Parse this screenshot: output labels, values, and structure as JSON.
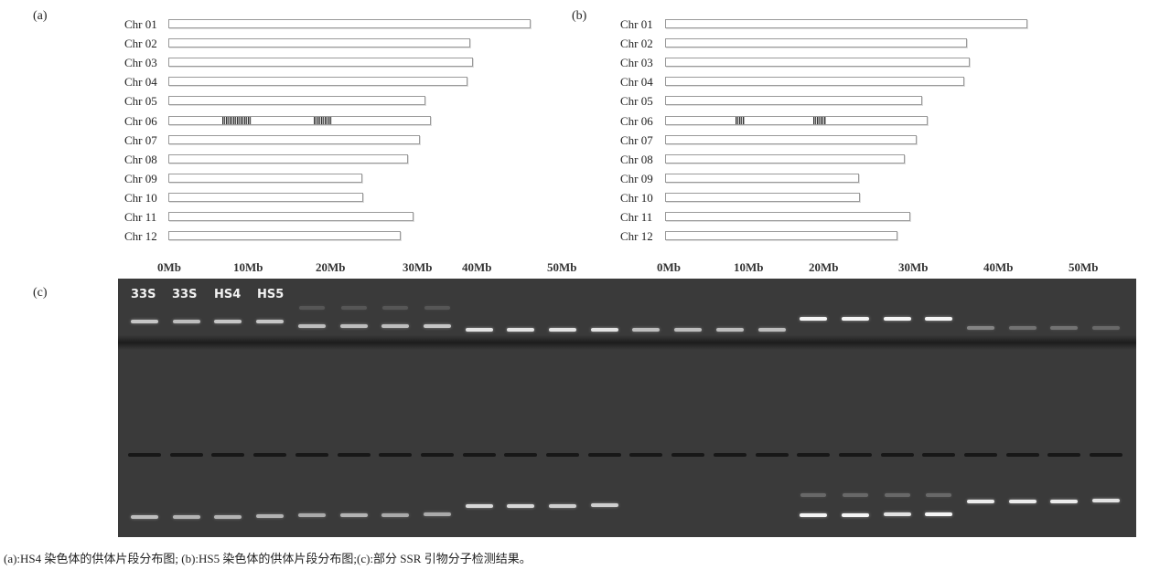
{
  "panels": {
    "a": "(a)",
    "b": "(b)",
    "c": "(c)"
  },
  "chromosomes": [
    {
      "name": "Chr 01",
      "length_mb": 43.0
    },
    {
      "name": "Chr 02",
      "length_mb": 35.9
    },
    {
      "name": "Chr 03",
      "length_mb": 36.2
    },
    {
      "name": "Chr 04",
      "length_mb": 35.5
    },
    {
      "name": "Chr 05",
      "length_mb": 30.5
    },
    {
      "name": "Chr 06",
      "length_mb": 31.2
    },
    {
      "name": "Chr 07",
      "length_mb": 29.9
    },
    {
      "name": "Chr 08",
      "length_mb": 28.5
    },
    {
      "name": "Chr 09",
      "length_mb": 23.0
    },
    {
      "name": "Chr 10",
      "length_mb": 23.2
    },
    {
      "name": "Chr 11",
      "length_mb": 29.1
    },
    {
      "name": "Chr 12",
      "length_mb": 27.6
    }
  ],
  "axis_labels": [
    "0Mb",
    "10Mb",
    "20Mb",
    "30Mb",
    "40Mb",
    "50Mb"
  ],
  "donor_segments": {
    "a": [
      {
        "chr": "Chr 06",
        "start_mb": 6.3,
        "end_mb": 9.8
      },
      {
        "chr": "Chr 06",
        "start_mb": 17.2,
        "end_mb": 19.3
      }
    ],
    "b": [
      {
        "chr": "Chr 06",
        "start_mb": 8.3,
        "end_mb": 9.3
      },
      {
        "chr": "Chr 06",
        "start_mb": 17.5,
        "end_mb": 19.0
      }
    ]
  },
  "gel": {
    "lane_labels": [
      "33S",
      "33S",
      "HS4",
      "HS5"
    ],
    "lane_count": 24
  },
  "caption": "(a):HS4 染色体的供体片段分布图; (b):HS5 染色体的供体片段分布图;(c):部分 SSR 引物分子检测结果。"
}
